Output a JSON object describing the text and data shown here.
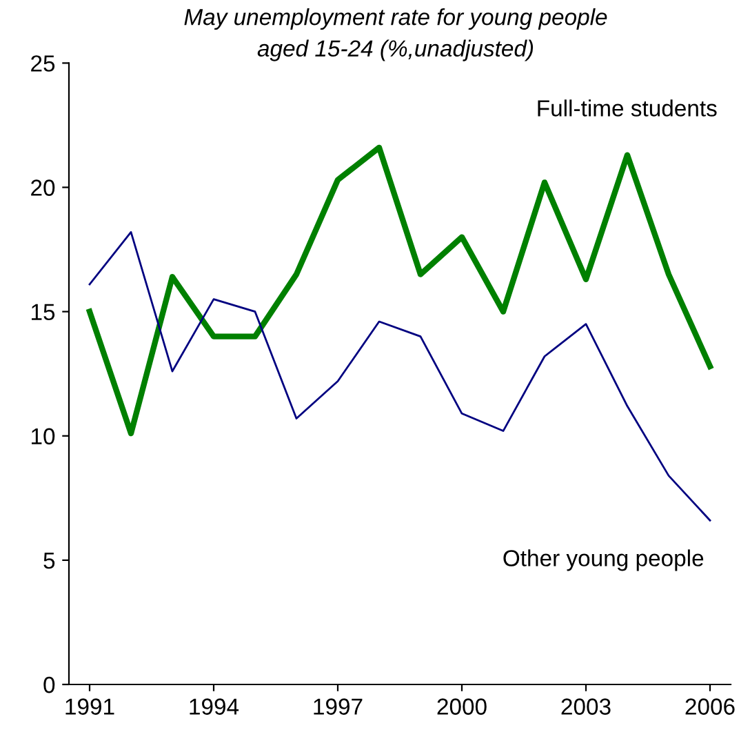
{
  "chart_data": {
    "type": "line",
    "title": "May unemployment rate for young people\naged 15-24 (%,unadjusted)",
    "x": [
      1991,
      1992,
      1993,
      1994,
      1995,
      1996,
      1997,
      1998,
      1999,
      2000,
      2001,
      2002,
      2003,
      2004,
      2005,
      2006
    ],
    "series": [
      {
        "name": "Full-time students",
        "color": "#008000",
        "values": [
          15.0,
          10.1,
          16.4,
          14.0,
          14.0,
          16.5,
          20.3,
          21.6,
          16.5,
          18.0,
          15.0,
          20.2,
          16.3,
          21.3,
          16.5,
          12.8
        ]
      },
      {
        "name": "Other young people",
        "color": "#000080",
        "values": [
          16.1,
          18.2,
          12.6,
          15.5,
          15.0,
          10.7,
          12.2,
          14.6,
          14.0,
          10.9,
          10.2,
          13.2,
          14.5,
          11.2,
          8.4,
          6.6
        ]
      }
    ],
    "xlim": [
      1990.5,
      2006.5
    ],
    "xticks": [
      1991,
      1994,
      1997,
      2000,
      2003,
      2006
    ],
    "ylim": [
      0,
      25
    ],
    "yticks": [
      0,
      5,
      10,
      15,
      20,
      25
    ],
    "grid": false,
    "legend": false,
    "marker": "none",
    "line_style": "solid"
  }
}
